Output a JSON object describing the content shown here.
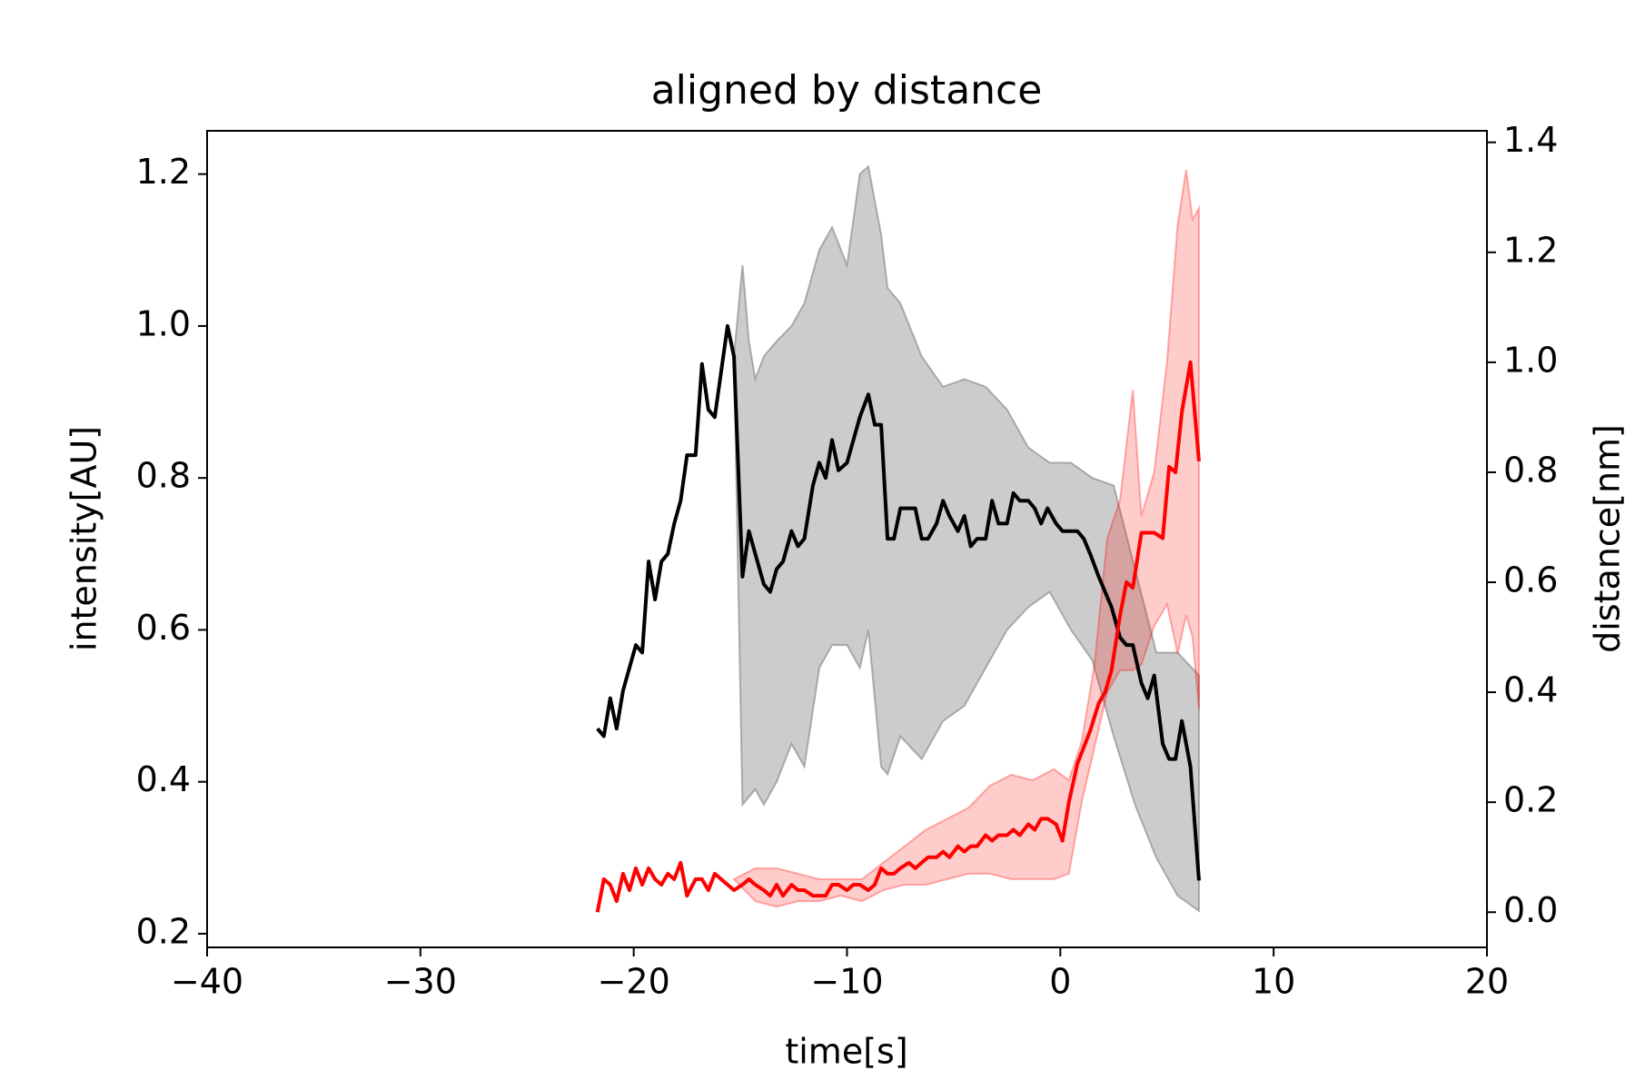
{
  "chart_data": {
    "type": "line",
    "title": "aligned by distance",
    "xlabel": "time[s]",
    "ylabel": "intensity[AU]",
    "y2label": "distance[nm]",
    "xlim": [
      -40,
      20
    ],
    "xticks": [
      {
        "value": -40,
        "label": "−40"
      },
      {
        "value": -30,
        "label": "−30"
      },
      {
        "value": -20,
        "label": "−20"
      },
      {
        "value": -10,
        "label": "−10"
      },
      0,
      10,
      20
    ],
    "ylim": [
      0.182,
      1.257
    ],
    "yticks": [
      0.2,
      0.4,
      0.6,
      0.8,
      {
        "value": 1,
        "label": "1.0"
      },
      1.2
    ],
    "y2lim": [
      -0.064,
      1.421
    ],
    "y2ticks": [
      {
        "value": 0,
        "label": "0.0"
      },
      0.2,
      0.4,
      0.6,
      0.8,
      {
        "value": 1,
        "label": "1.0"
      },
      1.2,
      1.4
    ],
    "bands": [
      {
        "color": "#808080",
        "opacity": 0.4,
        "x": [
          -15.3,
          -14.9,
          -14.6,
          -14.3,
          -13.9,
          -13.3,
          -12.6,
          -12.0,
          -11.3,
          -10.7,
          -10.0,
          -9.4,
          -9.0,
          -8.4,
          -8.1,
          -7.5,
          -6.5,
          -5.5,
          -4.5,
          -3.5,
          -2.5,
          -1.5,
          -0.5,
          0.5,
          1.5,
          2.5,
          3.5,
          4.5,
          5.5,
          6.5
        ],
        "upper": [
          0.96,
          1.08,
          0.98,
          0.93,
          0.96,
          0.98,
          1.0,
          1.03,
          1.1,
          1.13,
          1.08,
          1.2,
          1.21,
          1.12,
          1.05,
          1.03,
          0.96,
          0.92,
          0.93,
          0.92,
          0.89,
          0.84,
          0.82,
          0.82,
          0.8,
          0.79,
          0.68,
          0.57,
          0.57,
          0.54
        ],
        "lower": [
          0.96,
          0.37,
          0.38,
          0.39,
          0.37,
          0.4,
          0.45,
          0.42,
          0.55,
          0.58,
          0.58,
          0.55,
          0.6,
          0.42,
          0.41,
          0.46,
          0.43,
          0.48,
          0.5,
          0.55,
          0.6,
          0.63,
          0.65,
          0.6,
          0.56,
          0.46,
          0.37,
          0.3,
          0.25,
          0.23
        ]
      },
      {
        "color": "#ff0000",
        "opacity": 0.2,
        "axis": "y2",
        "x": [
          -15.3,
          -14.3,
          -13.3,
          -12.3,
          -11.3,
          -10.3,
          -9.3,
          -8.3,
          -7.3,
          -6.3,
          -5.3,
          -4.3,
          -3.3,
          -2.3,
          -1.3,
          -0.3,
          0.4,
          1.0,
          1.6,
          2.2,
          2.8,
          3.4,
          3.8,
          4.4,
          5.0,
          5.5,
          5.9,
          6.2,
          6.5
        ],
        "upper": [
          0.06,
          0.08,
          0.08,
          0.07,
          0.06,
          0.06,
          0.06,
          0.09,
          0.12,
          0.15,
          0.17,
          0.19,
          0.23,
          0.25,
          0.24,
          0.26,
          0.24,
          0.31,
          0.45,
          0.68,
          0.75,
          0.95,
          0.72,
          0.8,
          1.0,
          1.25,
          1.35,
          1.26,
          1.28
        ],
        "lower": [
          0.06,
          0.02,
          0.01,
          0.02,
          0.02,
          0.03,
          0.02,
          0.04,
          0.05,
          0.05,
          0.06,
          0.07,
          0.07,
          0.06,
          0.06,
          0.06,
          0.07,
          0.2,
          0.3,
          0.4,
          0.44,
          0.44,
          0.45,
          0.52,
          0.56,
          0.47,
          0.54,
          0.5,
          0.37
        ]
      }
    ],
    "series": [
      {
        "color": "#000000",
        "x": [
          -21.7,
          -21.4,
          -21.1,
          -20.8,
          -20.5,
          -19.9,
          -19.6,
          -19.3,
          -19.0,
          -18.7,
          -18.4,
          -18.1,
          -17.8,
          -17.5,
          -17.1,
          -16.8,
          -16.5,
          -16.2,
          -15.6,
          -15.3,
          -14.9,
          -14.6,
          -14.3,
          -13.9,
          -13.6,
          -13.3,
          -13.0,
          -12.6,
          -12.3,
          -12.0,
          -11.6,
          -11.3,
          -11.0,
          -10.7,
          -10.4,
          -10.0,
          -9.7,
          -9.4,
          -9.0,
          -8.7,
          -8.4,
          -8.1,
          -7.8,
          -7.5,
          -6.8,
          -6.5,
          -6.2,
          -5.8,
          -5.5,
          -5.2,
          -4.8,
          -4.5,
          -4.2,
          -3.9,
          -3.5,
          -3.2,
          -2.9,
          -2.5,
          -2.2,
          -1.9,
          -1.5,
          -1.2,
          -0.9,
          -0.6,
          -0.2,
          0.1,
          0.4,
          0.8,
          1.1,
          1.4,
          1.8,
          2.1,
          2.4,
          2.8,
          3.1,
          3.4,
          3.8,
          4.1,
          4.4,
          4.8,
          5.1,
          5.4,
          5.7,
          6.1,
          6.5
        ],
        "values": [
          0.47,
          0.46,
          0.51,
          0.47,
          0.52,
          0.58,
          0.57,
          0.69,
          0.64,
          0.69,
          0.7,
          0.74,
          0.77,
          0.83,
          0.83,
          0.95,
          0.89,
          0.88,
          1.0,
          0.96,
          0.67,
          0.73,
          0.7,
          0.66,
          0.65,
          0.68,
          0.69,
          0.73,
          0.71,
          0.72,
          0.79,
          0.82,
          0.8,
          0.85,
          0.81,
          0.82,
          0.85,
          0.88,
          0.91,
          0.87,
          0.87,
          0.72,
          0.72,
          0.76,
          0.76,
          0.72,
          0.72,
          0.74,
          0.77,
          0.75,
          0.73,
          0.75,
          0.71,
          0.72,
          0.72,
          0.77,
          0.74,
          0.74,
          0.78,
          0.77,
          0.77,
          0.76,
          0.74,
          0.76,
          0.74,
          0.73,
          0.73,
          0.73,
          0.72,
          0.7,
          0.67,
          0.65,
          0.63,
          0.59,
          0.58,
          0.58,
          0.53,
          0.51,
          0.54,
          0.45,
          0.43,
          0.43,
          0.48,
          0.42,
          0.27
        ]
      },
      {
        "color": "#ff0000",
        "axis": "y2",
        "x": [
          -21.7,
          -21.4,
          -21.1,
          -20.8,
          -20.5,
          -20.2,
          -19.9,
          -19.6,
          -19.3,
          -19.0,
          -18.7,
          -18.4,
          -18.1,
          -17.8,
          -17.5,
          -17.1,
          -16.8,
          -16.5,
          -16.2,
          -15.9,
          -15.6,
          -15.3,
          -14.9,
          -14.6,
          -14.3,
          -13.9,
          -13.6,
          -13.3,
          -13.0,
          -12.6,
          -12.3,
          -12.0,
          -11.6,
          -11.3,
          -11.0,
          -10.7,
          -10.4,
          -10.0,
          -9.7,
          -9.4,
          -9.0,
          -8.7,
          -8.4,
          -8.1,
          -7.8,
          -7.5,
          -7.1,
          -6.8,
          -6.5,
          -6.2,
          -5.8,
          -5.5,
          -5.2,
          -4.8,
          -4.5,
          -4.2,
          -3.9,
          -3.5,
          -3.2,
          -2.9,
          -2.5,
          -2.2,
          -1.9,
          -1.5,
          -1.2,
          -0.9,
          -0.6,
          -0.2,
          0.1,
          0.4,
          0.8,
          1.1,
          1.4,
          1.8,
          2.1,
          2.4,
          2.8,
          3.1,
          3.4,
          3.8,
          4.1,
          4.4,
          4.8,
          5.1,
          5.4,
          5.7,
          6.1,
          6.5
        ],
        "values": [
          0.0,
          0.06,
          0.05,
          0.02,
          0.07,
          0.04,
          0.08,
          0.05,
          0.08,
          0.06,
          0.05,
          0.07,
          0.06,
          0.09,
          0.03,
          0.06,
          0.06,
          0.04,
          0.07,
          0.06,
          0.05,
          0.04,
          0.05,
          0.06,
          0.05,
          0.04,
          0.03,
          0.05,
          0.03,
          0.05,
          0.04,
          0.04,
          0.03,
          0.03,
          0.03,
          0.05,
          0.05,
          0.04,
          0.05,
          0.05,
          0.04,
          0.05,
          0.08,
          0.07,
          0.07,
          0.08,
          0.09,
          0.08,
          0.09,
          0.1,
          0.1,
          0.11,
          0.1,
          0.12,
          0.11,
          0.12,
          0.12,
          0.14,
          0.13,
          0.14,
          0.14,
          0.15,
          0.14,
          0.16,
          0.15,
          0.17,
          0.17,
          0.16,
          0.13,
          0.2,
          0.27,
          0.3,
          0.33,
          0.38,
          0.4,
          0.44,
          0.54,
          0.6,
          0.59,
          0.69,
          0.69,
          0.69,
          0.68,
          0.81,
          0.8,
          0.91,
          1.0,
          0.82
        ]
      }
    ]
  }
}
